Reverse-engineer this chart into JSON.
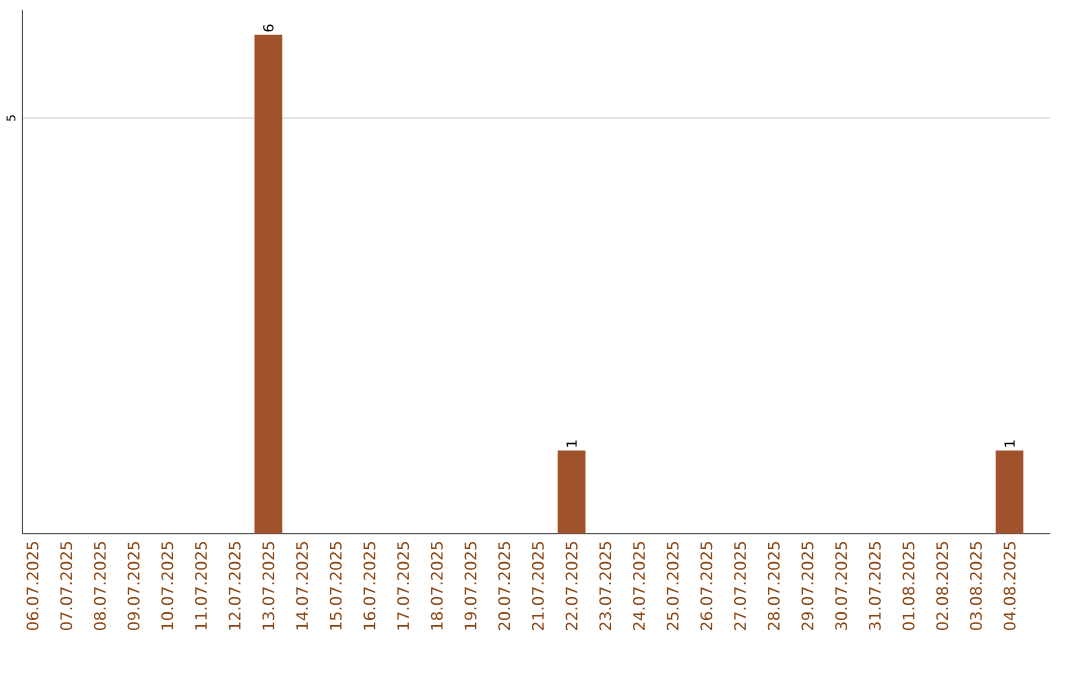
{
  "chart_data": {
    "type": "bar",
    "categories": [
      "06.07.2025",
      "07.07.2025",
      "08.07.2025",
      "09.07.2025",
      "10.07.2025",
      "11.07.2025",
      "12.07.2025",
      "13.07.2025",
      "14.07.2025",
      "15.07.2025",
      "16.07.2025",
      "17.07.2025",
      "18.07.2025",
      "19.07.2025",
      "20.07.2025",
      "21.07.2025",
      "22.07.2025",
      "23.07.2025",
      "24.07.2025",
      "25.07.2025",
      "26.07.2025",
      "27.07.2025",
      "28.07.2025",
      "29.07.2025",
      "30.07.2025",
      "31.07.2025",
      "01.08.2025",
      "02.08.2025",
      "03.08.2025",
      "04.08.2025"
    ],
    "values": [
      0,
      0,
      0,
      0,
      0,
      0,
      0,
      6,
      0,
      0,
      0,
      0,
      0,
      0,
      0,
      0,
      1,
      0,
      0,
      0,
      0,
      0,
      0,
      0,
      0,
      0,
      0,
      0,
      0,
      1
    ],
    "value_labels": [
      null,
      null,
      null,
      null,
      null,
      null,
      null,
      "6",
      null,
      null,
      null,
      null,
      null,
      null,
      null,
      null,
      "1",
      null,
      null,
      null,
      null,
      null,
      null,
      null,
      null,
      null,
      null,
      null,
      null,
      "1"
    ],
    "color": "#a0522d",
    "ylim": [
      0,
      6.3
    ],
    "yticks": [
      5
    ],
    "grid": "y"
  }
}
